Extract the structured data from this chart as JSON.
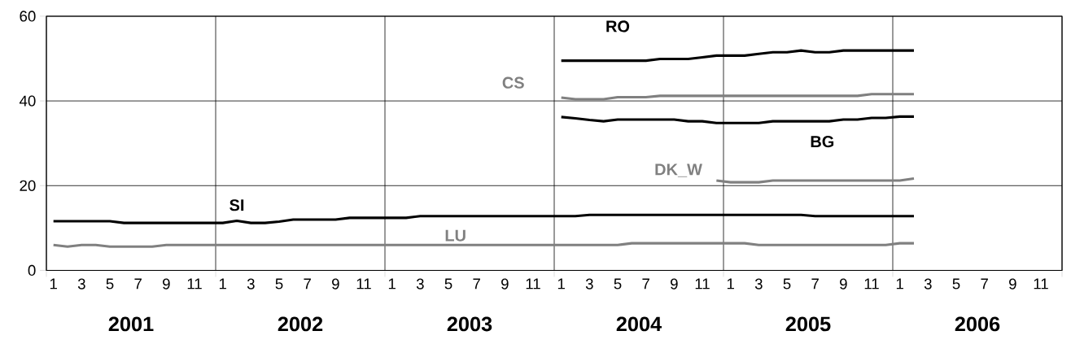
{
  "chart_data": {
    "type": "line",
    "categories": [
      "1",
      null,
      "3",
      null,
      "5",
      null,
      "7",
      null,
      "9",
      null,
      "11",
      null,
      "1",
      null,
      "3",
      null,
      "5",
      null,
      "7",
      null,
      "9",
      null,
      "11",
      null,
      "1",
      null,
      "3",
      null,
      "5",
      null,
      "7",
      null,
      "9",
      null,
      "11",
      null,
      "1",
      null,
      "3",
      null,
      "5",
      null,
      "7",
      null,
      "9",
      null,
      "11",
      null,
      "1",
      null,
      "3",
      null,
      "5",
      null,
      "7",
      null,
      "9",
      null,
      "11",
      null,
      "1",
      null,
      "3",
      null,
      "5",
      null,
      "7",
      null,
      "9",
      null,
      "11",
      null
    ],
    "series": [
      {
        "name": "SI",
        "color": "#000000",
        "values": [
          11.6,
          11.6,
          11.6,
          11.6,
          11.6,
          11.2,
          11.2,
          11.2,
          11.2,
          11.2,
          11.2,
          11.2,
          11.2,
          11.7,
          11.2,
          11.2,
          11.5,
          12.0,
          12.0,
          12.0,
          12.0,
          12.4,
          12.4,
          12.4,
          12.4,
          12.4,
          12.8,
          12.8,
          12.8,
          12.8,
          12.8,
          12.8,
          12.8,
          12.8,
          12.8,
          12.8,
          12.8,
          12.8,
          13.1,
          13.1,
          13.1,
          13.1,
          13.1,
          13.1,
          13.1,
          13.1,
          13.1,
          13.1,
          13.1,
          13.1,
          13.1,
          13.1,
          13.1,
          13.1,
          12.8,
          12.8,
          12.8,
          12.8,
          12.8,
          12.8,
          12.8,
          12.8,
          null,
          null,
          null,
          null,
          null,
          null,
          null,
          null,
          null,
          null
        ]
      },
      {
        "name": "LU",
        "color": "#808080",
        "values": [
          6.0,
          5.6,
          6.0,
          6.0,
          5.6,
          5.6,
          5.6,
          5.6,
          6.0,
          6.0,
          6.0,
          6.0,
          6.0,
          6.0,
          6.0,
          6.0,
          6.0,
          6.0,
          6.0,
          6.0,
          6.0,
          6.0,
          6.0,
          6.0,
          6.0,
          6.0,
          6.0,
          6.0,
          6.0,
          6.0,
          6.0,
          6.0,
          6.0,
          6.0,
          6.0,
          6.0,
          6.0,
          6.0,
          6.0,
          6.0,
          6.0,
          6.4,
          6.4,
          6.4,
          6.4,
          6.4,
          6.4,
          6.4,
          6.4,
          6.4,
          6.0,
          6.0,
          6.0,
          6.0,
          6.0,
          6.0,
          6.0,
          6.0,
          6.0,
          6.0,
          6.4,
          6.4,
          null,
          null,
          null,
          null,
          null,
          null,
          null,
          null,
          null,
          null
        ]
      },
      {
        "name": "RO",
        "color": "#000000",
        "values": [
          null,
          null,
          null,
          null,
          null,
          null,
          null,
          null,
          null,
          null,
          null,
          null,
          null,
          null,
          null,
          null,
          null,
          null,
          null,
          null,
          null,
          null,
          null,
          null,
          null,
          null,
          null,
          null,
          null,
          null,
          null,
          null,
          null,
          null,
          null,
          null,
          49.5,
          49.5,
          49.5,
          49.5,
          49.5,
          49.5,
          49.5,
          49.9,
          49.9,
          49.9,
          50.3,
          50.7,
          50.7,
          50.7,
          51.1,
          51.5,
          51.5,
          51.9,
          51.5,
          51.5,
          51.9,
          51.9,
          51.9,
          51.9,
          51.9,
          51.9,
          null,
          null,
          null,
          null,
          null,
          null,
          null,
          null,
          null,
          null
        ]
      },
      {
        "name": "CS",
        "color": "#808080",
        "values": [
          null,
          null,
          null,
          null,
          null,
          null,
          null,
          null,
          null,
          null,
          null,
          null,
          null,
          null,
          null,
          null,
          null,
          null,
          null,
          null,
          null,
          null,
          null,
          null,
          null,
          null,
          null,
          null,
          null,
          null,
          null,
          null,
          null,
          null,
          null,
          null,
          40.8,
          40.4,
          40.4,
          40.4,
          40.9,
          40.9,
          40.9,
          41.2,
          41.2,
          41.2,
          41.2,
          41.2,
          41.2,
          41.2,
          41.2,
          41.2,
          41.2,
          41.2,
          41.2,
          41.2,
          41.2,
          41.2,
          41.6,
          41.6,
          41.6,
          41.6,
          null,
          null,
          null,
          null,
          null,
          null,
          null,
          null,
          null,
          null
        ]
      },
      {
        "name": "BG",
        "color": "#000000",
        "values": [
          null,
          null,
          null,
          null,
          null,
          null,
          null,
          null,
          null,
          null,
          null,
          null,
          null,
          null,
          null,
          null,
          null,
          null,
          null,
          null,
          null,
          null,
          null,
          null,
          null,
          null,
          null,
          null,
          null,
          null,
          null,
          null,
          null,
          null,
          null,
          null,
          36.2,
          35.9,
          35.5,
          35.2,
          35.6,
          35.6,
          35.6,
          35.6,
          35.6,
          35.2,
          35.2,
          34.8,
          34.8,
          34.8,
          34.8,
          35.2,
          35.2,
          35.2,
          35.2,
          35.2,
          35.6,
          35.6,
          36.0,
          36.0,
          36.3,
          36.3,
          null,
          null,
          null,
          null,
          null,
          null,
          null,
          null,
          null,
          null
        ]
      },
      {
        "name": "DK_W",
        "color": "#808080",
        "values": [
          null,
          null,
          null,
          null,
          null,
          null,
          null,
          null,
          null,
          null,
          null,
          null,
          null,
          null,
          null,
          null,
          null,
          null,
          null,
          null,
          null,
          null,
          null,
          null,
          null,
          null,
          null,
          null,
          null,
          null,
          null,
          null,
          null,
          null,
          null,
          null,
          null,
          null,
          null,
          null,
          null,
          null,
          null,
          null,
          null,
          null,
          null,
          21.2,
          20.8,
          20.8,
          20.8,
          21.2,
          21.2,
          21.2,
          21.2,
          21.2,
          21.2,
          21.2,
          21.2,
          21.2,
          21.2,
          21.7,
          null,
          null,
          null,
          null,
          null,
          null,
          null,
          null,
          null,
          null
        ]
      }
    ],
    "ylim": [
      0,
      60
    ],
    "yticks": [
      0,
      20,
      40,
      60
    ],
    "grid": true,
    "annotations": [
      "2001",
      "2002",
      "2003",
      "2004",
      "2005",
      "2006"
    ]
  }
}
